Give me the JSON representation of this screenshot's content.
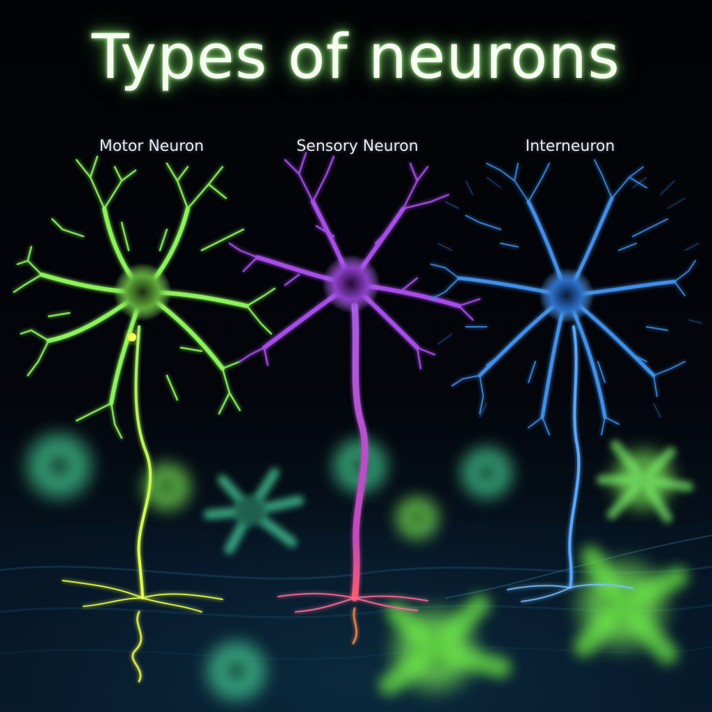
{
  "title": "Types of neurons",
  "labels": {
    "motor": "Motor Neuron",
    "sensory": "Sensory Neuron",
    "inter": "Interneuron"
  },
  "colors": {
    "motor": "#8cf25a",
    "sensory": "#a64de8",
    "inter": "#3f8fe8",
    "background_glia": "#4fe6a0",
    "title_glow": "#b4ff96"
  }
}
